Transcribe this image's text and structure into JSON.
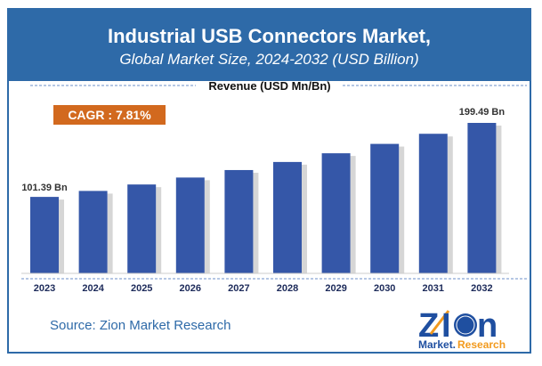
{
  "header": {
    "title": "Industrial USB Connectors Market,",
    "subtitle": "Global Market Size, 2024-2032 (USD Billion)"
  },
  "source": "Source: Zion Market Research",
  "logo": {
    "text": "Zion Market.Research"
  },
  "colors": {
    "header": "#2e6aa8",
    "bar": "#3557a8",
    "cagr": "#d2691e"
  },
  "chart_data": {
    "type": "bar",
    "ylabel": "Revenue (USD Mn/Bn)",
    "categories": [
      "2023",
      "2024",
      "2025",
      "2026",
      "2027",
      "2028",
      "2029",
      "2030",
      "2031",
      "2032"
    ],
    "values": [
      101.39,
      109.31,
      117.85,
      127.06,
      136.98,
      147.68,
      159.22,
      171.66,
      185.06,
      199.49
    ],
    "data_labels": {
      "first": "101.39 Bn",
      "last": "199.49 Bn"
    },
    "annotation": "CAGR : 7.81%",
    "ylim": [
      0,
      230
    ],
    "grid": false
  }
}
